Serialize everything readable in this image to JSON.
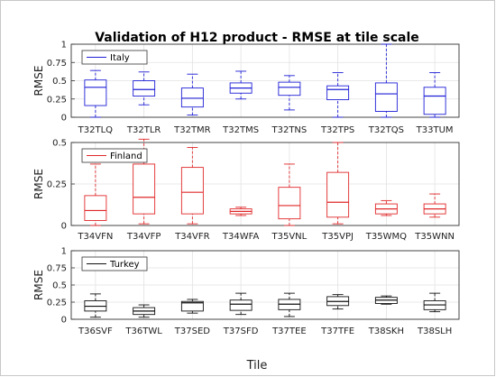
{
  "title": "Validation of H12 product - RMSE at tile scale",
  "xlabel": "Tile",
  "chart_data": [
    {
      "type": "box",
      "ylabel": "RMSE",
      "ylim": [
        0,
        1
      ],
      "yticks": [
        "0",
        "0.25",
        "0.5",
        "0.75",
        "1"
      ],
      "grid": true,
      "legend": "top-left",
      "color": "#1f1fd6",
      "series_name": "Italy",
      "categories": [
        "T32TLQ",
        "T32TLR",
        "T32TMR",
        "T32TMS",
        "T32TNS",
        "T32TPS",
        "T32TQS",
        "T33TUM"
      ],
      "boxes": [
        {
          "min": 0.0,
          "q1": 0.16,
          "median": 0.41,
          "q3": 0.51,
          "max": 0.64
        },
        {
          "min": 0.17,
          "q1": 0.29,
          "median": 0.38,
          "q3": 0.5,
          "max": 0.62
        },
        {
          "min": 0.03,
          "q1": 0.14,
          "median": 0.26,
          "q3": 0.4,
          "max": 0.59
        },
        {
          "min": 0.25,
          "q1": 0.33,
          "median": 0.4,
          "q3": 0.47,
          "max": 0.63
        },
        {
          "min": 0.1,
          "q1": 0.3,
          "median": 0.41,
          "q3": 0.48,
          "max": 0.57
        },
        {
          "min": 0.0,
          "q1": 0.24,
          "median": 0.38,
          "q3": 0.43,
          "max": 0.61
        },
        {
          "min": 0.0,
          "q1": 0.08,
          "median": 0.32,
          "q3": 0.47,
          "max": 1.0
        },
        {
          "min": 0.0,
          "q1": 0.04,
          "median": 0.29,
          "q3": 0.41,
          "max": 0.61
        }
      ]
    },
    {
      "type": "box",
      "ylabel": "RMSE",
      "ylim": [
        0,
        0.5
      ],
      "yticks": [
        "0",
        "0.25",
        "0.5"
      ],
      "grid": true,
      "legend": "top-left",
      "color": "#e0282a",
      "series_name": "Finland",
      "categories": [
        "T34VFN",
        "T34VFP",
        "T34VFR",
        "T34WFA",
        "T35VNL",
        "T35VPJ",
        "T35WMQ",
        "T35WNN"
      ],
      "boxes": [
        {
          "min": 0.0,
          "q1": 0.03,
          "median": 0.09,
          "q3": 0.18,
          "max": 0.37
        },
        {
          "min": 0.01,
          "q1": 0.07,
          "median": 0.17,
          "q3": 0.37,
          "max": 0.52
        },
        {
          "min": 0.01,
          "q1": 0.07,
          "median": 0.2,
          "q3": 0.35,
          "max": 0.47
        },
        {
          "min": 0.06,
          "q1": 0.07,
          "median": 0.085,
          "q3": 0.1,
          "max": 0.11
        },
        {
          "min": 0.0,
          "q1": 0.04,
          "median": 0.12,
          "q3": 0.23,
          "max": 0.37
        },
        {
          "min": 0.01,
          "q1": 0.05,
          "median": 0.14,
          "q3": 0.32,
          "max": 0.5
        },
        {
          "min": 0.06,
          "q1": 0.07,
          "median": 0.1,
          "q3": 0.13,
          "max": 0.15
        },
        {
          "min": 0.05,
          "q1": 0.07,
          "median": 0.1,
          "q3": 0.13,
          "max": 0.19
        }
      ]
    },
    {
      "type": "box",
      "ylabel": "RMSE",
      "ylim": [
        0,
        1
      ],
      "yticks": [
        "0",
        "0.25",
        "0.5",
        "0.75",
        "1"
      ],
      "grid": true,
      "legend": "top-left",
      "color": "#111111",
      "series_name": "Turkey",
      "categories": [
        "T36SVF",
        "T36TWL",
        "T37SED",
        "T37SFD",
        "T37TEE",
        "T37TFE",
        "T38SKH",
        "T38SLH"
      ],
      "boxes": [
        {
          "min": 0.03,
          "q1": 0.12,
          "median": 0.19,
          "q3": 0.27,
          "max": 0.37
        },
        {
          "min": 0.03,
          "q1": 0.07,
          "median": 0.12,
          "q3": 0.17,
          "max": 0.21
        },
        {
          "min": 0.09,
          "q1": 0.12,
          "median": 0.24,
          "q3": 0.26,
          "max": 0.29
        },
        {
          "min": 0.07,
          "q1": 0.13,
          "median": 0.22,
          "q3": 0.28,
          "max": 0.38
        },
        {
          "min": 0.04,
          "q1": 0.14,
          "median": 0.22,
          "q3": 0.29,
          "max": 0.38
        },
        {
          "min": 0.15,
          "q1": 0.2,
          "median": 0.26,
          "q3": 0.33,
          "max": 0.36
        },
        {
          "min": 0.22,
          "q1": 0.23,
          "median": 0.28,
          "q3": 0.32,
          "max": 0.34
        },
        {
          "min": 0.11,
          "q1": 0.14,
          "median": 0.21,
          "q3": 0.27,
          "max": 0.38
        }
      ]
    }
  ]
}
